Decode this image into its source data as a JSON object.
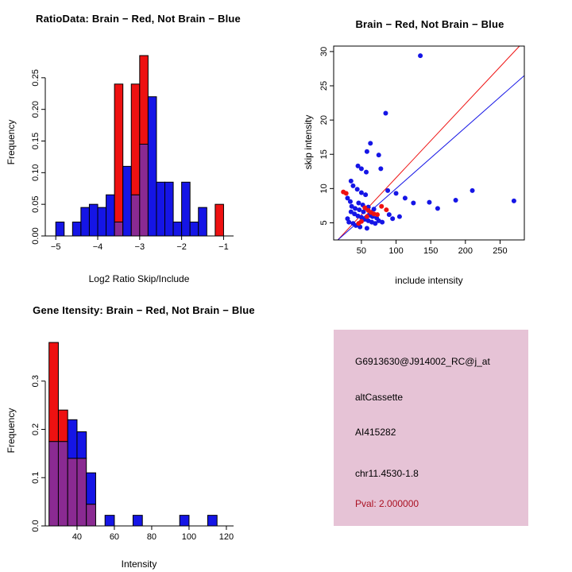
{
  "colors": {
    "red": "#ee1111",
    "blue": "#1515e6",
    "overlap": "#8a2a92",
    "axis": "#000000",
    "info_panel_bg": "#e6c3d6",
    "pval_text": "#aa1122"
  },
  "chart_data": [
    {
      "type": "histogram",
      "title": "RatioData: Brain − Red, Not Brain − Blue",
      "xlabel": "Log2 Ratio Skip/Include",
      "ylabel": "Frequency",
      "xlim": [
        -5.25,
        -0.8
      ],
      "ylim": [
        0,
        0.295
      ],
      "grid": false,
      "xticks": [
        {
          "v": -5,
          "label": "−5"
        },
        {
          "v": -4,
          "label": "−4"
        },
        {
          "v": -3,
          "label": "−3"
        },
        {
          "v": -2,
          "label": "−2"
        },
        {
          "v": -1,
          "label": "−1"
        }
      ],
      "yticks": [
        {
          "v": 0,
          "label": "0.00"
        },
        {
          "v": 0.05,
          "label": "0.05"
        },
        {
          "v": 0.1,
          "label": "0.10"
        },
        {
          "v": 0.15,
          "label": "0.15"
        },
        {
          "v": 0.2,
          "label": "0.20"
        },
        {
          "v": 0.25,
          "label": "0.25"
        }
      ],
      "bins": [
        {
          "x0": -5.0,
          "x1": -4.8,
          "blue": 0.022
        },
        {
          "x0": -4.6,
          "x1": -4.4,
          "blue": 0.022
        },
        {
          "x0": -4.4,
          "x1": -4.2,
          "blue": 0.045
        },
        {
          "x0": -4.2,
          "x1": -4.0,
          "blue": 0.05
        },
        {
          "x0": -4.0,
          "x1": -3.8,
          "blue": 0.045
        },
        {
          "x0": -3.8,
          "x1": -3.6,
          "blue": 0.065
        },
        {
          "x0": -3.6,
          "x1": -3.4,
          "red": 0.24,
          "blue": 0.022
        },
        {
          "x0": -3.4,
          "x1": -3.2,
          "blue": 0.11
        },
        {
          "x0": -3.2,
          "x1": -3.0,
          "red": 0.24,
          "blue": 0.065
        },
        {
          "x0": -3.0,
          "x1": -2.8,
          "red": 0.285,
          "blue": 0.145
        },
        {
          "x0": -2.8,
          "x1": -2.6,
          "blue": 0.22
        },
        {
          "x0": -2.6,
          "x1": -2.4,
          "blue": 0.085
        },
        {
          "x0": -2.4,
          "x1": -2.2,
          "blue": 0.085
        },
        {
          "x0": -2.2,
          "x1": -2.0,
          "blue": 0.022
        },
        {
          "x0": -2.0,
          "x1": -1.8,
          "blue": 0.085
        },
        {
          "x0": -1.8,
          "x1": -1.6,
          "blue": 0.022
        },
        {
          "x0": -1.6,
          "x1": -1.4,
          "blue": 0.045
        },
        {
          "x0": -1.2,
          "x1": -1.0,
          "red": 0.05
        }
      ]
    },
    {
      "type": "scatter",
      "title": "Brain − Red, Not Brain − Blue",
      "xlabel": "include intensity",
      "ylabel": "skip intensity",
      "xlim": [
        10,
        285
      ],
      "ylim": [
        2.5,
        30.8
      ],
      "grid": false,
      "xticks": [
        {
          "v": 50,
          "label": "50"
        },
        {
          "v": 100,
          "label": "100"
        },
        {
          "v": 150,
          "label": "150"
        },
        {
          "v": 200,
          "label": "200"
        },
        {
          "v": 250,
          "label": "250"
        }
      ],
      "yticks": [
        {
          "v": 5,
          "label": "5"
        },
        {
          "v": 10,
          "label": "10"
        },
        {
          "v": 15,
          "label": "15"
        },
        {
          "v": 20,
          "label": "20"
        },
        {
          "v": 25,
          "label": "25"
        },
        {
          "v": 30,
          "label": "30"
        }
      ],
      "blue_points": [
        [
          135,
          29.4
        ],
        [
          85,
          21.0
        ],
        [
          63,
          16.6
        ],
        [
          58,
          15.4
        ],
        [
          45,
          13.3
        ],
        [
          50,
          12.9
        ],
        [
          57,
          12.4
        ],
        [
          75,
          14.9
        ],
        [
          78,
          12.9
        ],
        [
          35,
          11.1
        ],
        [
          38,
          10.4
        ],
        [
          44,
          9.9
        ],
        [
          50,
          9.4
        ],
        [
          56,
          9.1
        ],
        [
          30,
          8.6
        ],
        [
          34,
          8.1
        ],
        [
          46,
          7.9
        ],
        [
          52,
          7.6
        ],
        [
          60,
          7.3
        ],
        [
          68,
          7.0
        ],
        [
          88,
          9.7
        ],
        [
          100,
          9.3
        ],
        [
          113,
          8.6
        ],
        [
          125,
          7.9
        ],
        [
          148,
          8.0
        ],
        [
          160,
          7.1
        ],
        [
          186,
          8.3
        ],
        [
          210,
          9.7
        ],
        [
          270,
          8.2
        ],
        [
          35,
          6.6
        ],
        [
          40,
          6.3
        ],
        [
          45,
          6.0
        ],
        [
          50,
          5.8
        ],
        [
          55,
          5.5
        ],
        [
          60,
          5.3
        ],
        [
          65,
          5.1
        ],
        [
          70,
          4.9
        ],
        [
          30,
          5.6
        ],
        [
          32,
          5.1
        ],
        [
          38,
          4.9
        ],
        [
          42,
          4.6
        ],
        [
          48,
          4.4
        ],
        [
          58,
          4.2
        ],
        [
          75,
          5.3
        ],
        [
          80,
          5.1
        ],
        [
          95,
          5.6
        ],
        [
          47,
          6.9
        ],
        [
          53,
          6.6
        ],
        [
          62,
          6.1
        ],
        [
          66,
          5.9
        ],
        [
          72,
          5.7
        ],
        [
          90,
          6.2
        ],
        [
          105,
          5.9
        ],
        [
          36,
          7.4
        ],
        [
          41,
          7.1
        ]
      ],
      "red_points": [
        [
          24,
          9.5
        ],
        [
          28,
          9.3
        ],
        [
          55,
          7.2
        ],
        [
          60,
          6.8
        ],
        [
          64,
          6.5
        ],
        [
          68,
          6.3
        ],
        [
          73,
          6.2
        ],
        [
          79,
          7.4
        ],
        [
          50,
          5.2
        ],
        [
          46,
          4.9
        ],
        [
          86,
          6.9
        ],
        [
          58,
          5.9
        ]
      ],
      "lines": [
        {
          "x1": 16,
          "y1": 2.5,
          "x2": 278,
          "y2": 30.8,
          "color": "red"
        },
        {
          "x1": 16,
          "y1": 2.5,
          "x2": 285,
          "y2": 26.5,
          "color": "blue"
        }
      ]
    },
    {
      "type": "histogram",
      "title": "Gene Itensity: Brain − Red, Not Brain − Blue",
      "xlabel": "Intensity",
      "ylabel": "Frequency",
      "xlim": [
        23,
        123
      ],
      "ylim": [
        0,
        0.39
      ],
      "grid": false,
      "xticks": [
        {
          "v": 40,
          "label": "40"
        },
        {
          "v": 60,
          "label": "60"
        },
        {
          "v": 80,
          "label": "80"
        },
        {
          "v": 100,
          "label": "100"
        },
        {
          "v": 120,
          "label": "120"
        }
      ],
      "yticks": [
        {
          "v": 0,
          "label": "0.0"
        },
        {
          "v": 0.1,
          "label": "0.1"
        },
        {
          "v": 0.2,
          "label": "0.2"
        },
        {
          "v": 0.3,
          "label": "0.3"
        }
      ],
      "bins": [
        {
          "x0": 25,
          "x1": 30,
          "red": 0.38,
          "blue": 0.175
        },
        {
          "x0": 30,
          "x1": 35,
          "red": 0.24,
          "blue": 0.175
        },
        {
          "x0": 35,
          "x1": 40,
          "red": 0.14,
          "blue": 0.22
        },
        {
          "x0": 40,
          "x1": 45,
          "red": 0.14,
          "blue": 0.195
        },
        {
          "x0": 45,
          "x1": 50,
          "red": 0.045,
          "blue": 0.11
        },
        {
          "x0": 55,
          "x1": 60,
          "blue": 0.022
        },
        {
          "x0": 70,
          "x1": 75,
          "blue": 0.022
        },
        {
          "x0": 95,
          "x1": 100,
          "blue": 0.022
        },
        {
          "x0": 110,
          "x1": 115,
          "blue": 0.022
        }
      ]
    }
  ],
  "info_panel": {
    "lines": [
      "G6913630@J914002_RC@j_at",
      "altCassette",
      "AI415282",
      "chr11.4530-1.8"
    ],
    "pval": "Pval: 2.000000"
  }
}
